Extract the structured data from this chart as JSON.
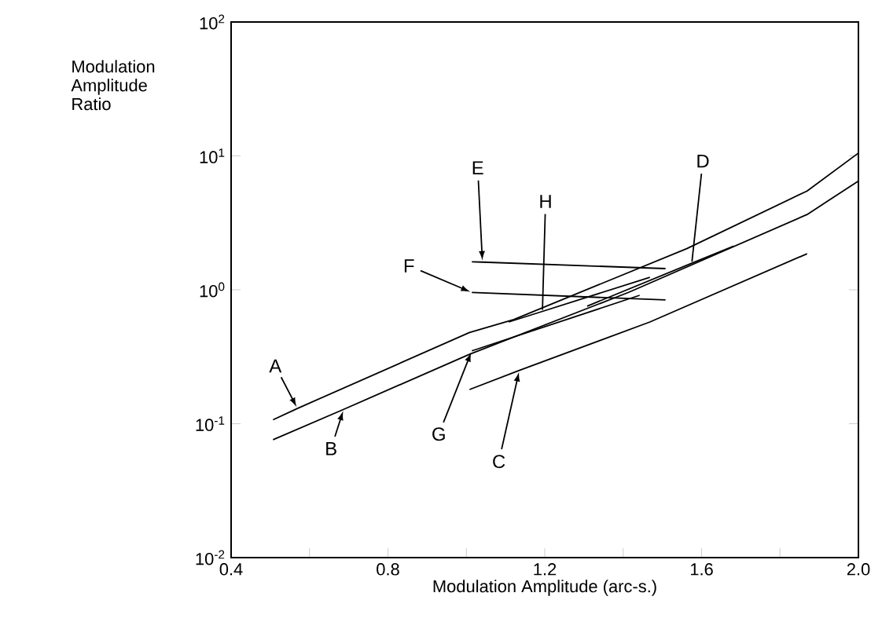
{
  "chart_data": {
    "type": "line",
    "xlabel": "Modulation Amplitude (arc-s.)",
    "ylabel": "Modulation Amplitude Ratio",
    "log": "y",
    "xlim": [
      0.4,
      2.0
    ],
    "ylim": [
      0.01,
      100
    ],
    "xticks": [
      0.4,
      {
        "value": 0.6,
        "label": null
      },
      0.8,
      {
        "value": 1.0,
        "label": null
      },
      1.2,
      {
        "value": 1.4,
        "label": null
      },
      1.6,
      {
        "value": 1.8,
        "label": null
      },
      {
        "value": 2.0,
        "label": "2.0"
      }
    ],
    "yticks": [
      {
        "value": 0.01,
        "label": "10$^{-2}$"
      },
      {
        "value": 0.1,
        "label": "10$^{-1}$"
      },
      {
        "value": 1,
        "label": "10$^{0}$"
      },
      {
        "value": 10,
        "label": "10$^{1}$"
      },
      {
        "value": 100,
        "label": "10$^{2}$"
      }
    ],
    "series": [
      {
        "name": "A",
        "color": "#000000",
        "x": [
          0.507,
          0.569,
          1.008,
          1.121,
          1.562,
          1.869,
          2.0
        ],
        "values": [
          0.107,
          0.13,
          0.48,
          0.6,
          2.03,
          5.47,
          10.5
        ]
      },
      {
        "name": "B",
        "color": "#000000",
        "x": [
          0.507,
          0.687,
          1.008,
          1.415,
          1.869,
          2.0
        ],
        "values": [
          0.076,
          0.128,
          0.33,
          0.96,
          3.65,
          6.5
        ]
      },
      {
        "name": "C",
        "color": "#000000",
        "x": [
          1.008,
          1.135,
          1.468,
          1.869
        ],
        "values": [
          0.18,
          0.25,
          0.575,
          1.86
        ]
      },
      {
        "name": "D",
        "color": "#000000",
        "x": [
          1.308,
          1.575,
          1.682
        ],
        "values": [
          0.755,
          1.58,
          2.12
        ]
      },
      {
        "name": "E",
        "color": "#000000",
        "x": [
          1.014,
          1.041,
          1.508
        ],
        "values": [
          1.62,
          1.61,
          1.44
        ]
      },
      {
        "name": "F",
        "color": "#000000",
        "x": [
          1.014,
          1.508
        ],
        "values": [
          0.955,
          0.84
        ]
      },
      {
        "name": "G",
        "color": "#000000",
        "x": [
          1.014,
          1.442
        ],
        "values": [
          0.35,
          0.91
        ]
      },
      {
        "name": "H",
        "color": "#000000",
        "x": [
          1.108,
          1.194,
          1.468
        ],
        "values": [
          0.575,
          0.69,
          1.24
        ]
      }
    ]
  }
}
